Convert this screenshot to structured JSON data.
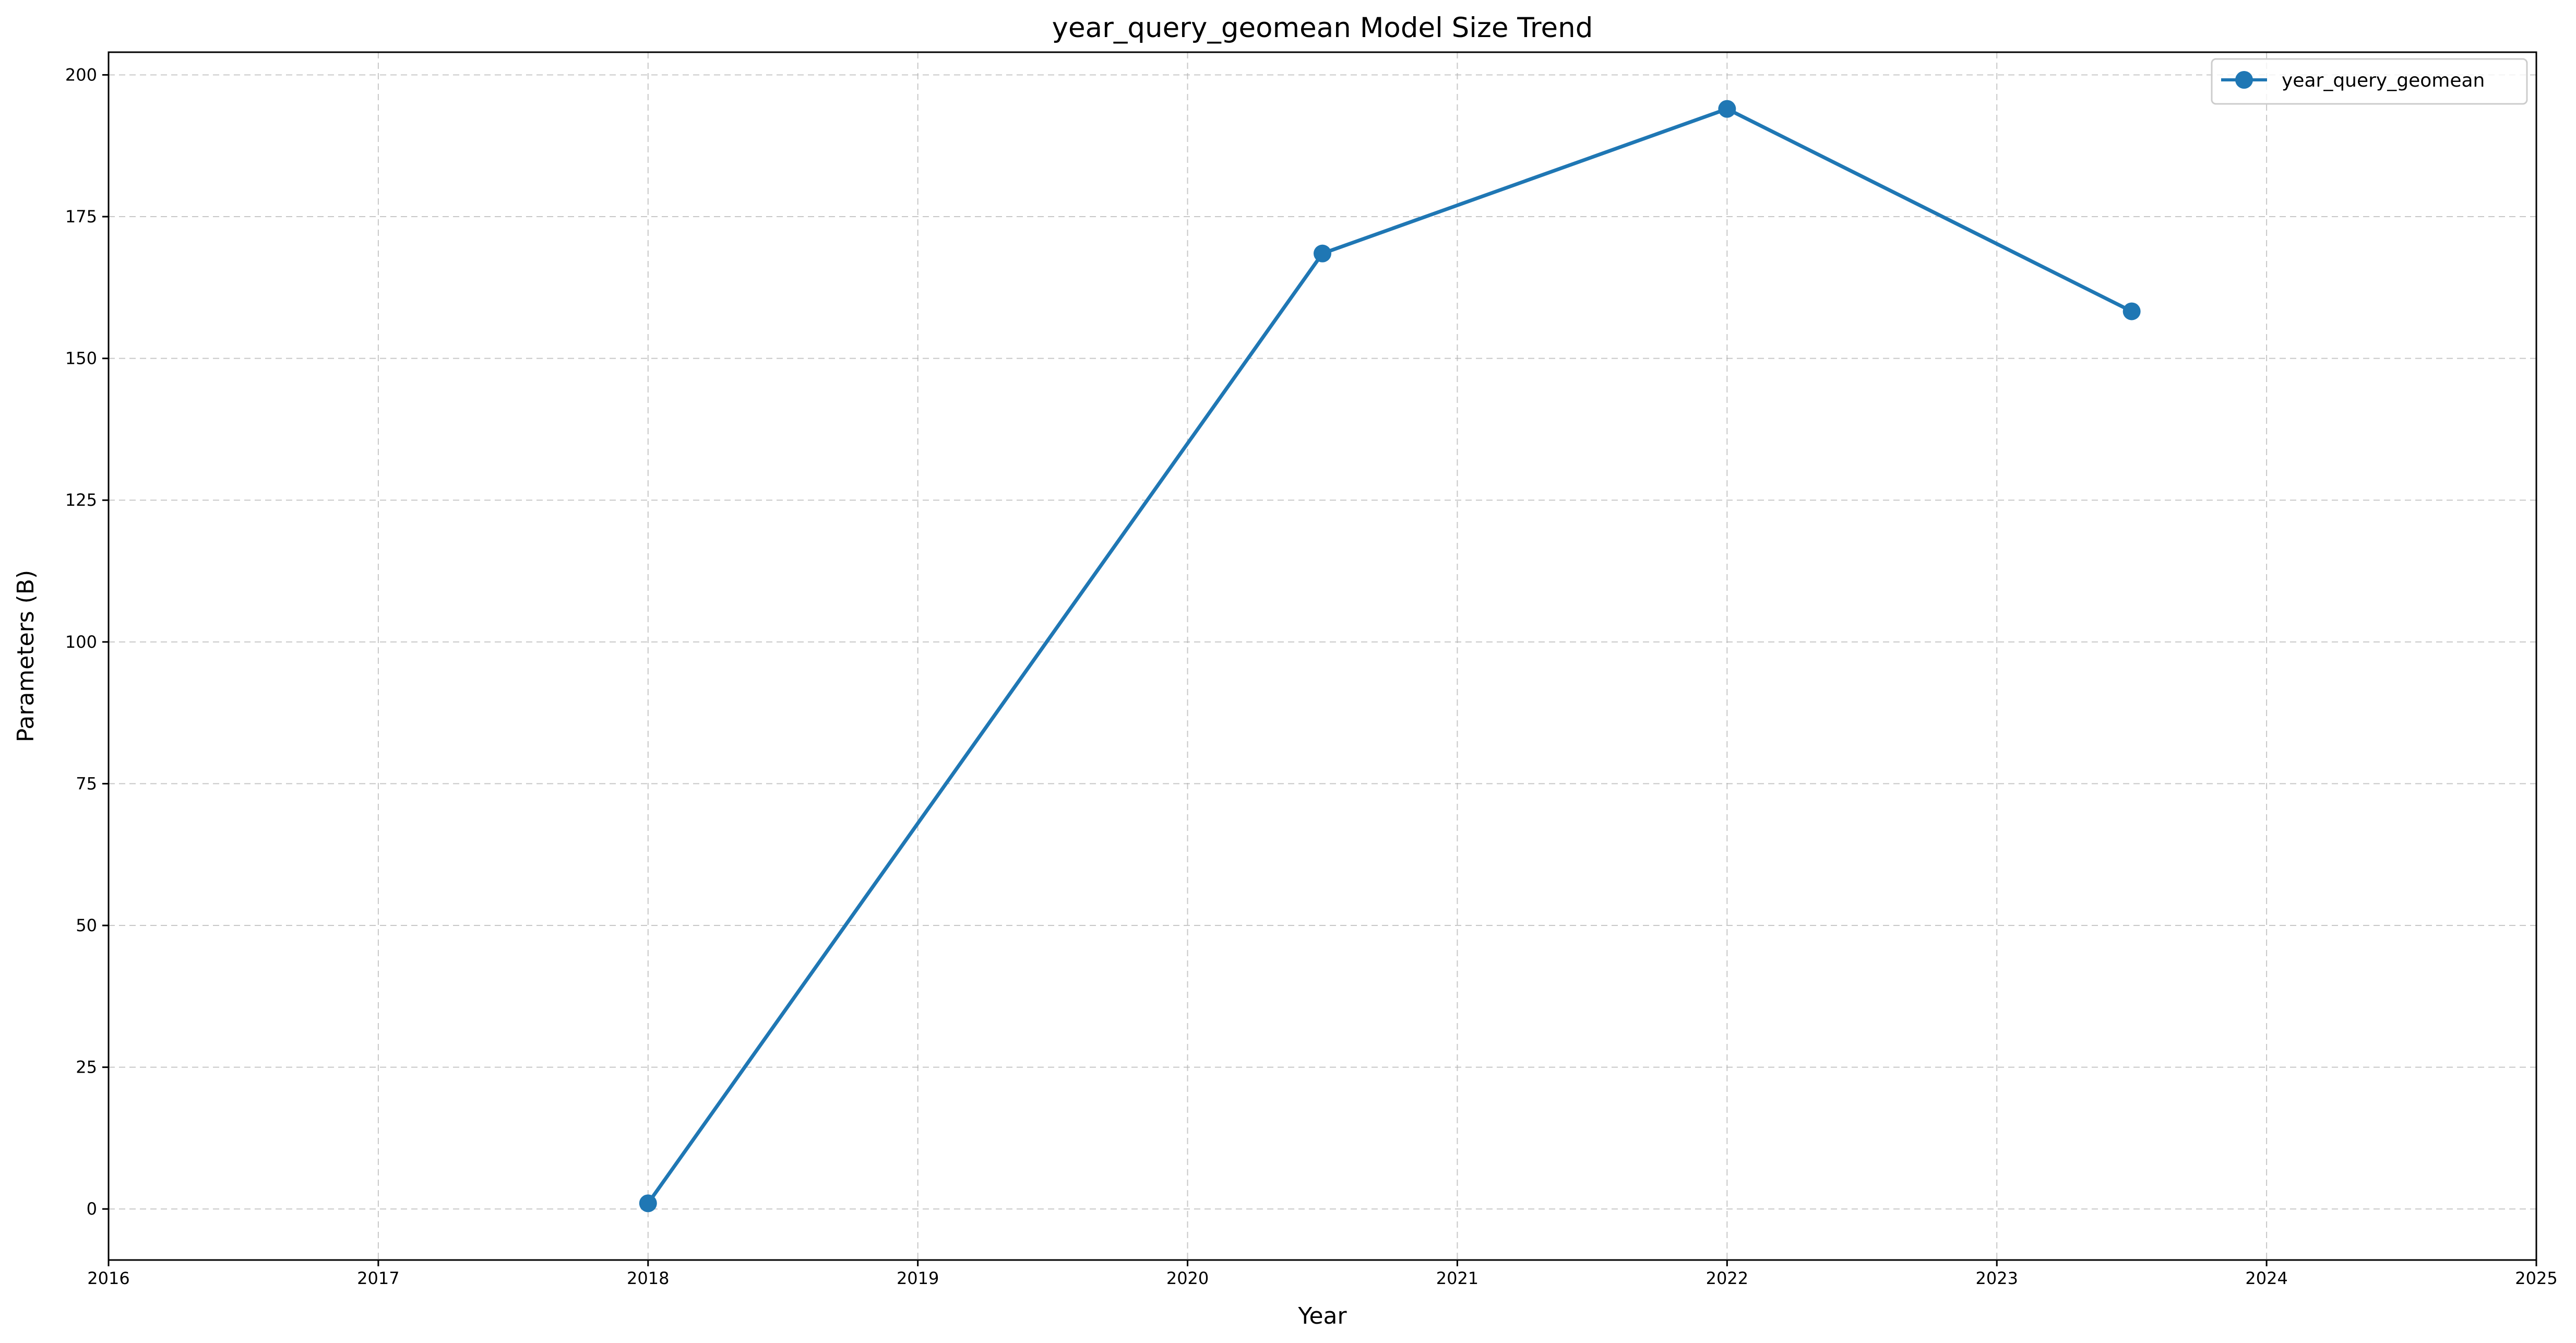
{
  "chart_data": {
    "type": "line",
    "title": "year_query_geomean Model Size Trend",
    "xlabel": "Year",
    "ylabel": "Parameters (B)",
    "xlim": [
      2016,
      2025
    ],
    "ylim": [
      -9,
      204
    ],
    "xticks": [
      2016,
      2017,
      2018,
      2019,
      2020,
      2021,
      2022,
      2023,
      2024,
      2025
    ],
    "yticks": [
      0,
      25,
      50,
      75,
      100,
      125,
      150,
      175,
      200
    ],
    "grid": true,
    "legend_position": "top-right",
    "series": [
      {
        "name": "year_query_geomean",
        "color": "#1f77b4",
        "marker": "circle",
        "x": [
          2018.0,
          2020.5,
          2022.0,
          2023.5
        ],
        "y": [
          1.0,
          168.5,
          194.0,
          158.3
        ]
      }
    ]
  }
}
